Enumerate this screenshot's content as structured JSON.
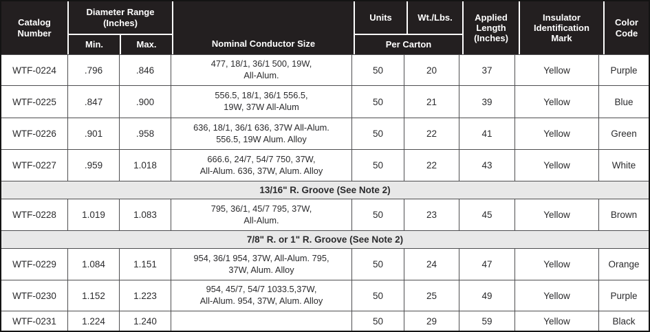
{
  "header": {
    "catalog": "Catalog\nNumber",
    "diameter_range": "Diameter Range\n(Inches)",
    "min": "Min.",
    "max": "Max.",
    "nominal_conductor": "Nominal Conductor Size",
    "units": "Units",
    "wt_lbs": "Wt./Lbs.",
    "per_carton": "Per Carton",
    "applied_length": "Applied\nLength\n(Inches)",
    "insulator_mark": "Insulator\nIdentification\nMark",
    "color_code": "Color\nCode"
  },
  "rows": [
    {
      "catalog": "WTF-0224",
      "min": ".796",
      "max": ".846",
      "conductor": "477, 18/1, 36/1 500, 19W,\nAll-Alum.",
      "units_per_carton": "50",
      "wt_lbs": "20",
      "applied_length": "37",
      "insulator_mark": "Yellow",
      "color_code": "Purple"
    },
    {
      "catalog": "WTF-0225",
      "min": ".847",
      "max": ".900",
      "conductor": "556.5, 18/1, 36/1 556.5,\n19W, 37W All-Alum",
      "units_per_carton": "50",
      "wt_lbs": "21",
      "applied_length": "39",
      "insulator_mark": "Yellow",
      "color_code": "Blue"
    },
    {
      "catalog": "WTF-0226",
      "min": ".901",
      "max": ".958",
      "conductor": "636, 18/1, 36/1 636, 37W All-Alum.\n556.5, 19W Alum. Alloy",
      "units_per_carton": "50",
      "wt_lbs": "22",
      "applied_length": "41",
      "insulator_mark": "Yellow",
      "color_code": "Green"
    },
    {
      "catalog": "WTF-0227",
      "min": ".959",
      "max": "1.018",
      "conductor": "666.6, 24/7, 54/7 750, 37W,\nAll-Alum. 636, 37W, Alum. Alloy",
      "units_per_carton": "50",
      "wt_lbs": "22",
      "applied_length": "43",
      "insulator_mark": "Yellow",
      "color_code": "White"
    },
    {
      "section_label": "13/16\" R. Groove (See Note 2)"
    },
    {
      "catalog": "WTF-0228",
      "min": "1.019",
      "max": "1.083",
      "conductor": "795, 36/1, 45/7 795, 37W,\nAll-Alum.",
      "units_per_carton": "50",
      "wt_lbs": "23",
      "applied_length": "45",
      "insulator_mark": "Yellow",
      "color_code": "Brown"
    },
    {
      "section_label": "7/8\" R. or 1\" R. Groove (See Note 2)"
    },
    {
      "catalog": "WTF-0229",
      "min": "1.084",
      "max": "1.151",
      "conductor": "954, 36/1 954, 37W, All-Alum. 795,\n37W, Alum. Alloy",
      "units_per_carton": "50",
      "wt_lbs": "24",
      "applied_length": "47",
      "insulator_mark": "Yellow",
      "color_code": "Orange"
    },
    {
      "catalog": "WTF-0230",
      "min": "1.152",
      "max": "1.223",
      "conductor": "954, 45/7, 54/7 1033.5,37W,\nAll-Alum. 954, 37W, Alum. Alloy",
      "units_per_carton": "50",
      "wt_lbs": "25",
      "applied_length": "49",
      "insulator_mark": "Yellow",
      "color_code": "Purple"
    },
    {
      "catalog": "WTF-0231",
      "min": "1.224",
      "max": "1.240",
      "conductor": "",
      "units_per_carton": "50",
      "wt_lbs": "29",
      "applied_length": "59",
      "insulator_mark": "Yellow",
      "color_code": "Black"
    }
  ],
  "colors": {
    "header_bg": "#231f20",
    "header_text": "#ffffff",
    "section_bg": "#e8e8e8",
    "grid_line": "#4c4c4e",
    "body_text": "#2a2a2c"
  }
}
